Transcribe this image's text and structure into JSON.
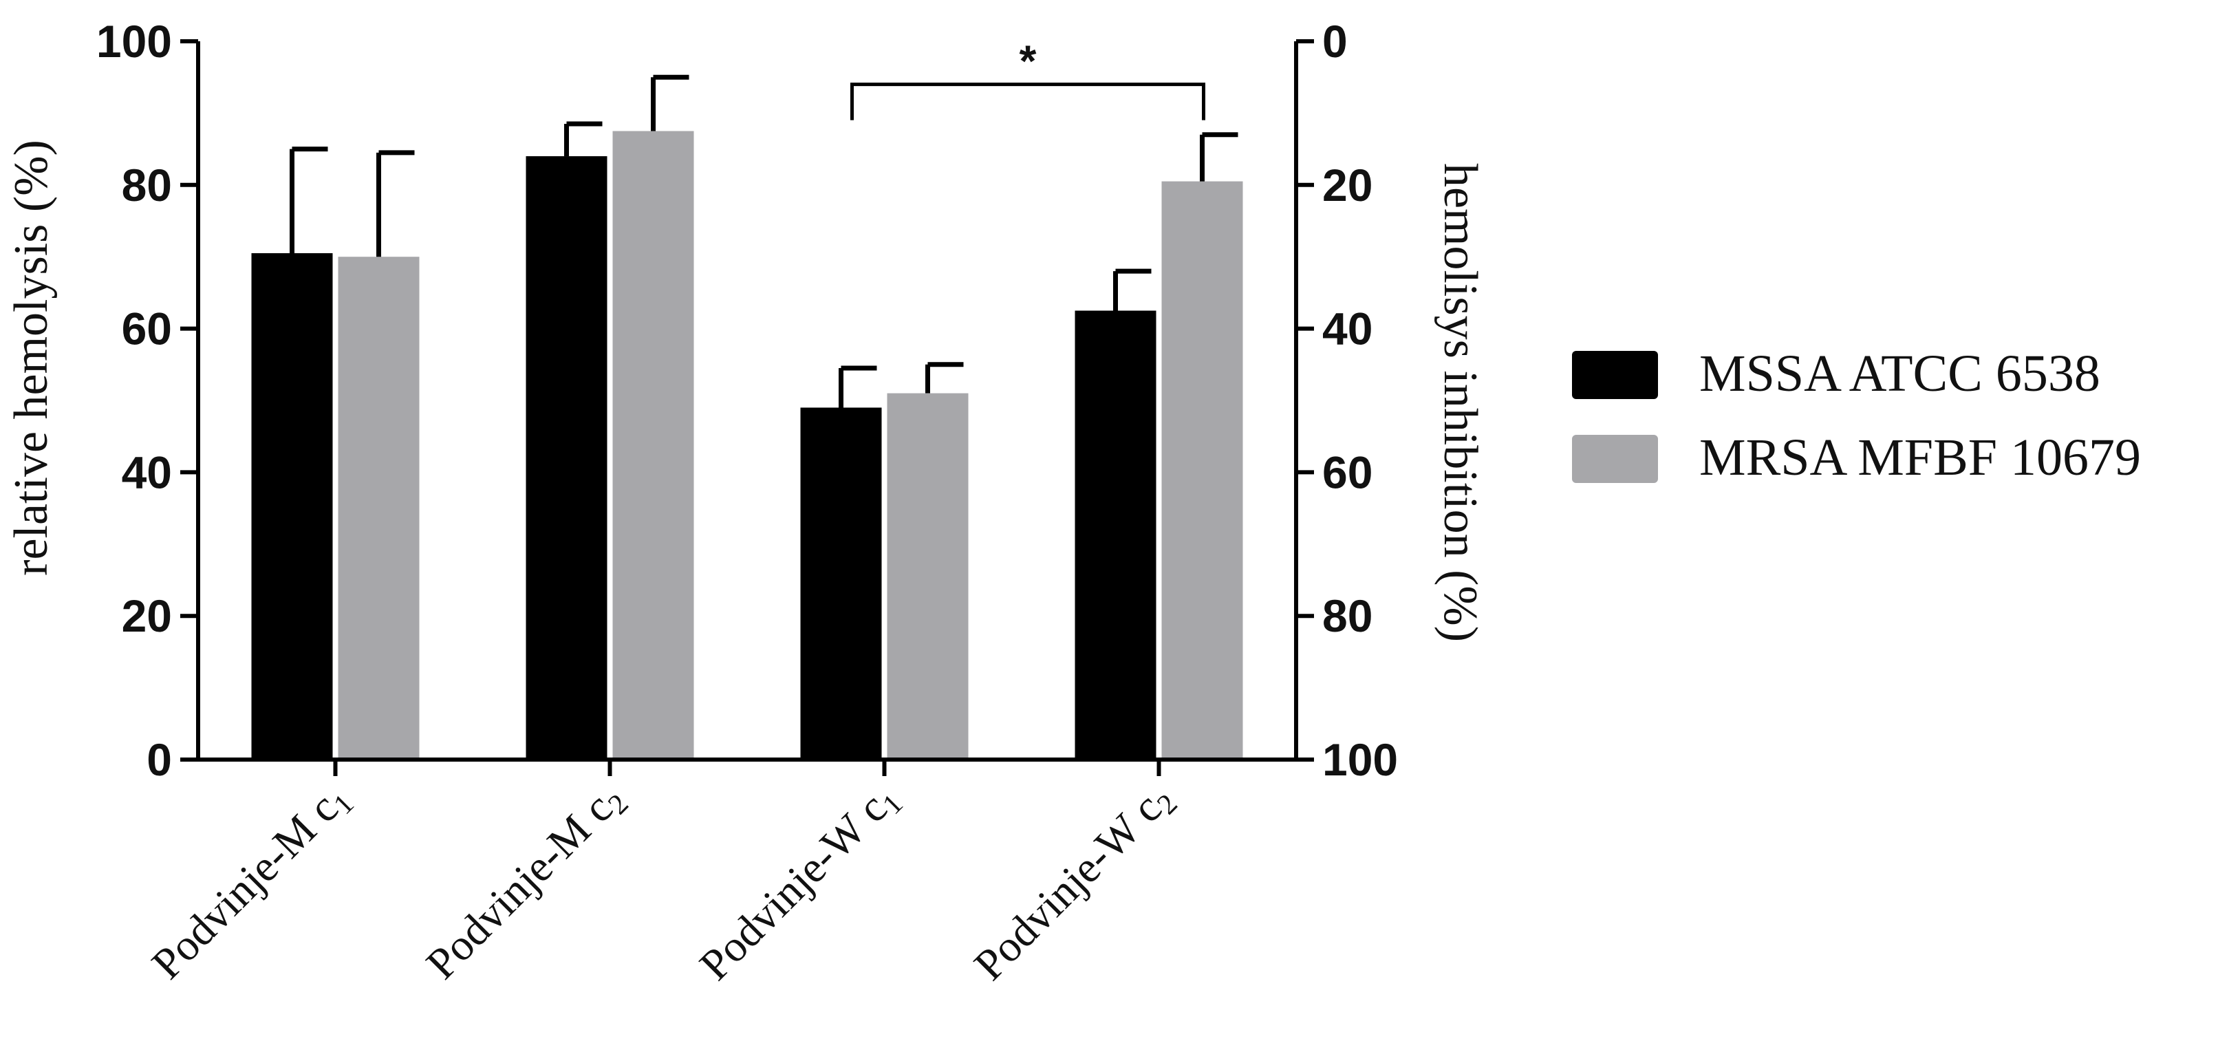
{
  "chart_data": {
    "type": "bar",
    "title": "",
    "categories": [
      {
        "name": "Podvinje-M c",
        "sub": "1"
      },
      {
        "name": "Podvinje-M c",
        "sub": "2"
      },
      {
        "name": "Podvinje-W c",
        "sub": "1"
      },
      {
        "name": "Podvinje-W c",
        "sub": "2"
      }
    ],
    "series": [
      {
        "name": "MSSA ATCC 6538",
        "color": "#000000",
        "values": [
          70.5,
          84,
          49,
          62.5
        ],
        "errors": [
          14.5,
          4.5,
          5.5,
          5.5
        ]
      },
      {
        "name": "MRSA MFBF 10679",
        "color": "#a7a7aa",
        "values": [
          70,
          87.5,
          51,
          80.5
        ],
        "errors": [
          14.5,
          7.5,
          4,
          6.5
        ]
      }
    ],
    "ylabel": "relative hemolysis (%)",
    "ylim": [
      0,
      100
    ],
    "yticks": [
      0,
      20,
      40,
      60,
      80,
      100
    ],
    "y2label": "hemolisys inhibition (%)",
    "y2lim": [
      100,
      0
    ],
    "y2ticks": [
      0,
      20,
      40,
      60,
      80,
      100
    ],
    "annotations": [
      {
        "text": "*",
        "from_category": 2,
        "from_series": 0,
        "to_category": 3,
        "to_series": 1,
        "at_y": 94
      }
    ],
    "legend_position": "right"
  }
}
